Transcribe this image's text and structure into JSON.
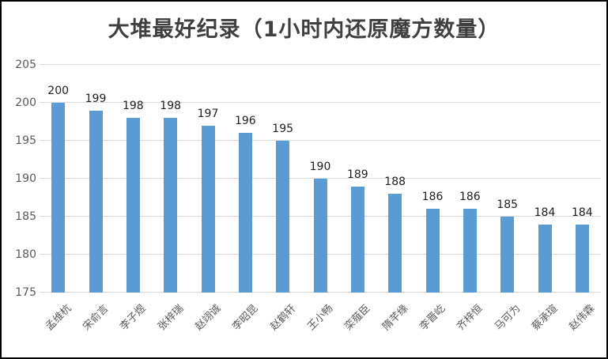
{
  "chart_data": {
    "type": "bar",
    "title": "大堆最好纪录（1小时内还原魔方数量）",
    "categories": [
      "孟维杭",
      "宋俞言",
      "李子煜",
      "张梓瑞",
      "赵翊诚",
      "李昭昆",
      "赵鹤轩",
      "王小畅",
      "栾薤臣",
      "隋芊缘",
      "李晋屹",
      "齐梓恒",
      "马可为",
      "蔡承瑄",
      "赵伟霖"
    ],
    "values": [
      200,
      199,
      198,
      198,
      197,
      196,
      195,
      190,
      189,
      188,
      186,
      186,
      185,
      184,
      184
    ],
    "xlabel": "",
    "ylabel": "",
    "ylim": [
      175,
      205
    ],
    "yticks": [
      175,
      180,
      185,
      190,
      195,
      200,
      205
    ],
    "grid": true,
    "legend_position": "none",
    "data_labels_shown": true,
    "colors": {
      "bar": "#5B9BD5",
      "gridline": "#d9d9d9",
      "axis_text": "#595959",
      "value_label_text": "#1f1f1f",
      "title_text": "#3f3f3f",
      "frame_border": "#000000",
      "background": "#ffffff"
    }
  }
}
